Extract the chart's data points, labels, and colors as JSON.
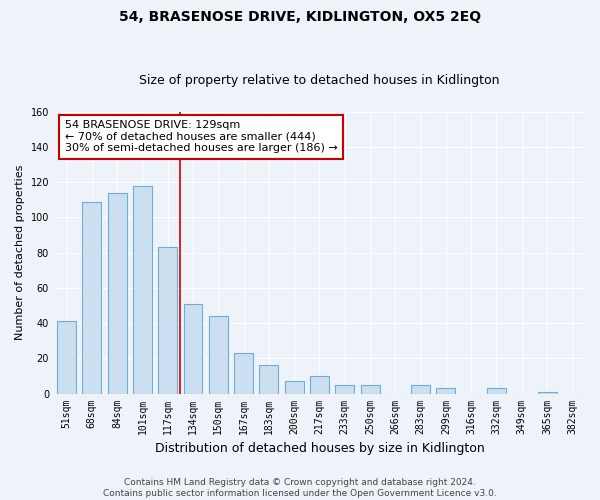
{
  "title": "54, BRASENOSE DRIVE, KIDLINGTON, OX5 2EQ",
  "subtitle": "Size of property relative to detached houses in Kidlington",
  "xlabel": "Distribution of detached houses by size in Kidlington",
  "ylabel": "Number of detached properties",
  "categories": [
    "51sqm",
    "68sqm",
    "84sqm",
    "101sqm",
    "117sqm",
    "134sqm",
    "150sqm",
    "167sqm",
    "183sqm",
    "200sqm",
    "217sqm",
    "233sqm",
    "250sqm",
    "266sqm",
    "283sqm",
    "299sqm",
    "316sqm",
    "332sqm",
    "349sqm",
    "365sqm",
    "382sqm"
  ],
  "values": [
    41,
    109,
    114,
    118,
    83,
    51,
    44,
    23,
    16,
    7,
    10,
    5,
    5,
    0,
    5,
    3,
    0,
    3,
    0,
    1,
    0
  ],
  "bar_color": "#ccdff0",
  "bar_edge_color": "#6baed6",
  "marker_line_color": "#cc0000",
  "annotation_title": "54 BRASENOSE DRIVE: 129sqm",
  "annotation_line1": "← 70% of detached houses are smaller (444)",
  "annotation_line2": "30% of semi-detached houses are larger (186) →",
  "annotation_box_color": "#ffffff",
  "annotation_box_edge_color": "#cc0000",
  "ylim": [
    0,
    160
  ],
  "yticks": [
    0,
    20,
    40,
    60,
    80,
    100,
    120,
    140,
    160
  ],
  "background_color": "#eef2f9",
  "grid_color": "#ffffff",
  "footer_line1": "Contains HM Land Registry data © Crown copyright and database right 2024.",
  "footer_line2": "Contains public sector information licensed under the Open Government Licence v3.0.",
  "title_fontsize": 10,
  "subtitle_fontsize": 9,
  "xlabel_fontsize": 9,
  "ylabel_fontsize": 8,
  "tick_fontsize": 7,
  "annotation_fontsize": 8,
  "footer_fontsize": 6.5
}
